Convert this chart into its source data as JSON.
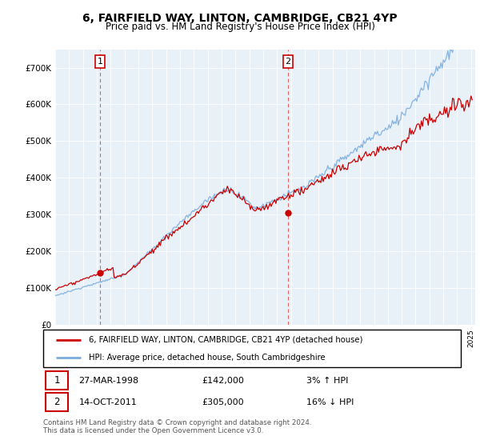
{
  "title": "6, FAIRFIELD WAY, LINTON, CAMBRIDGE, CB21 4YP",
  "subtitle": "Price paid vs. HM Land Registry's House Price Index (HPI)",
  "legend_line1": "6, FAIRFIELD WAY, LINTON, CAMBRIDGE, CB21 4YP (detached house)",
  "legend_line2": "HPI: Average price, detached house, South Cambridgeshire",
  "sale1_date": "27-MAR-1998",
  "sale1_price": "£142,000",
  "sale1_hpi": "3% ↑ HPI",
  "sale2_date": "14-OCT-2011",
  "sale2_price": "£305,000",
  "sale2_hpi": "16% ↓ HPI",
  "footer": "Contains HM Land Registry data © Crown copyright and database right 2024.\nThis data is licensed under the Open Government Licence v3.0.",
  "hpi_color": "#7aadde",
  "price_color": "#cc0000",
  "marker_color": "#cc0000",
  "sale1_year": 1998.23,
  "sale1_value": 142000,
  "sale2_year": 2011.79,
  "sale2_value": 305000,
  "ylim_min": 0,
  "ylim_max": 750000,
  "chart_bg": "#e8f0f8",
  "background_color": "#ffffff",
  "grid_color": "#ffffff",
  "vline_color": "#e06060",
  "title_fontsize": 10,
  "subtitle_fontsize": 8.5
}
